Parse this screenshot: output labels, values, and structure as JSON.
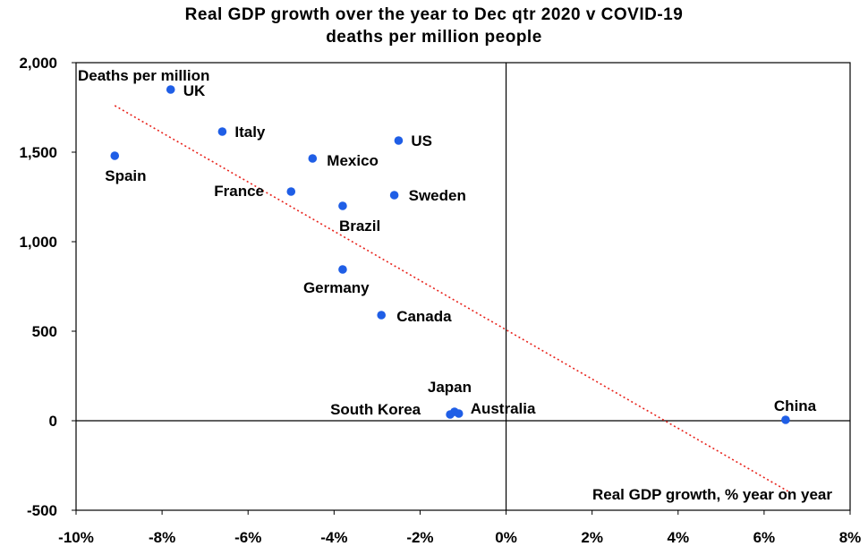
{
  "chart_data": {
    "type": "scatter",
    "title": "Real GDP growth over the year to Dec qtr 2020 v COVID-19",
    "subtitle": "deaths per million people",
    "xlabel": "Real GDP growth, % year on year",
    "ylabel": "Deaths per million",
    "xlim": [
      -10,
      8
    ],
    "ylim": [
      -500,
      2000
    ],
    "x_ticks": [
      -10,
      -8,
      -6,
      -4,
      -2,
      0,
      2,
      4,
      6,
      8
    ],
    "x_tick_labels": [
      "-10%",
      "-8%",
      "-6%",
      "-4%",
      "-2%",
      "0%",
      "2%",
      "4%",
      "6%",
      "8%"
    ],
    "y_ticks": [
      -500,
      0,
      500,
      1000,
      1500,
      2000
    ],
    "y_tick_labels": [
      "-500",
      "0",
      "500",
      "1,000",
      "1,500",
      "2,000"
    ],
    "grid": false,
    "point_color": "#1f5ee6",
    "trendline": {
      "style": "dotted",
      "color": "#e8231c",
      "x": [
        -9.1,
        6.6
      ],
      "y": [
        1760,
        -400
      ]
    },
    "points": [
      {
        "name": "UK",
        "x": -7.8,
        "y": 1850
      },
      {
        "name": "Italy",
        "x": -6.6,
        "y": 1615
      },
      {
        "name": "Spain",
        "x": -9.1,
        "y": 1480
      },
      {
        "name": "US",
        "x": -2.5,
        "y": 1565
      },
      {
        "name": "Mexico",
        "x": -4.5,
        "y": 1465
      },
      {
        "name": "France",
        "x": -5.0,
        "y": 1280
      },
      {
        "name": "Sweden",
        "x": -2.6,
        "y": 1260
      },
      {
        "name": "Brazil",
        "x": -3.8,
        "y": 1200
      },
      {
        "name": "Germany",
        "x": -3.8,
        "y": 845
      },
      {
        "name": "Canada",
        "x": -2.9,
        "y": 590
      },
      {
        "name": "Japan",
        "x": -1.2,
        "y": 50
      },
      {
        "name": "South Korea",
        "x": -1.3,
        "y": 35
      },
      {
        "name": "Australia",
        "x": -1.1,
        "y": 40
      },
      {
        "name": "China",
        "x": 6.5,
        "y": 5
      }
    ]
  }
}
